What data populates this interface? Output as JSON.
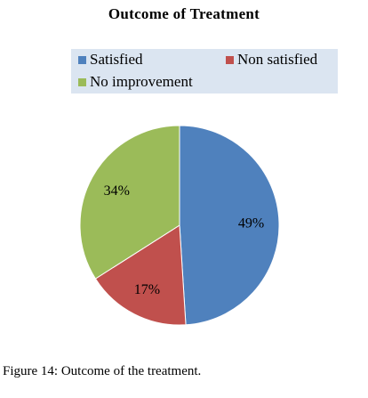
{
  "chart_data": {
    "type": "pie",
    "title": "Outcome  of Treatment",
    "legend_position": "top",
    "categories": [
      "Satisfied",
      "Non satisfied",
      "No improvement"
    ],
    "values": [
      49,
      17,
      34
    ],
    "labels": [
      "49%",
      "17%",
      "34%"
    ],
    "colors": [
      "#4f81bd",
      "#c0504d",
      "#9bbb59"
    ]
  },
  "caption": {
    "label": "Figure 14:",
    "text": "Outcome of the treatment."
  }
}
